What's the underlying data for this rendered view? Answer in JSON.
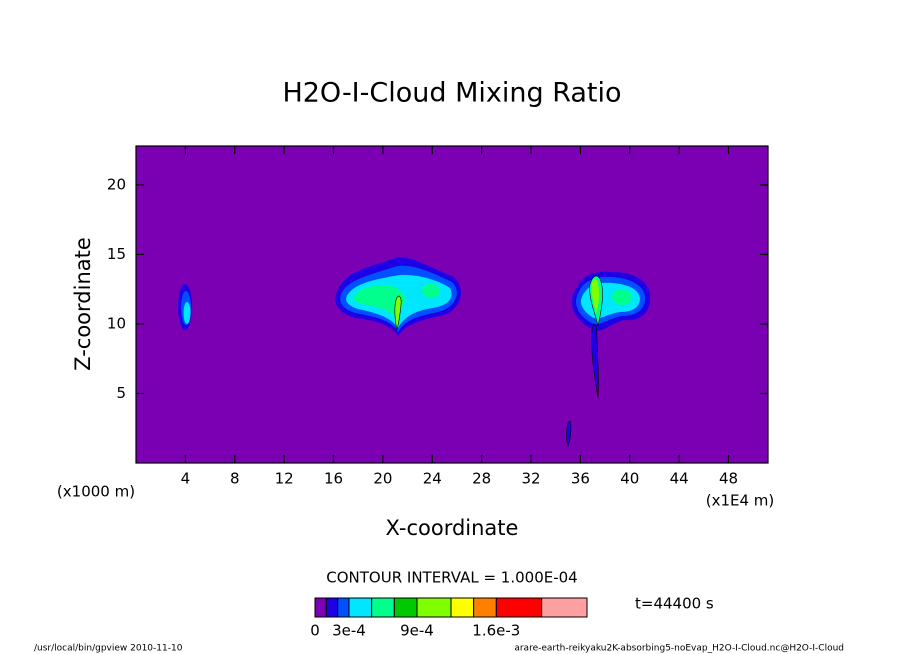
{
  "chart_data": {
    "type": "contour",
    "title": "H2O-I-Cloud Mixing Ratio",
    "x_label": "X-coordinate",
    "y_label": "Z-coordinate",
    "x_unit_label": "(x1E4 m)",
    "y_unit_label": "(x1000 m)",
    "xlim": [
      0,
      51.2
    ],
    "ylim": [
      0,
      22.8
    ],
    "xticks": [
      4,
      8,
      12,
      16,
      20,
      24,
      28,
      32,
      36,
      40,
      44,
      48
    ],
    "yticks": [
      5,
      10,
      15,
      20
    ],
    "background_color": "#7b00b4",
    "contour_interval_label": "CONTOUR INTERVAL = 1.000E-04",
    "time_label": "t=44400 s",
    "colorbar": {
      "levels": [
        0,
        0.0001,
        0.0002,
        0.0003,
        0.0005,
        0.0007,
        0.0009,
        0.0012,
        0.0014,
        0.0016,
        0.002,
        0.0024
      ],
      "colors": [
        "#7b00b4",
        "#1e00e6",
        "#0050ff",
        "#00e6ff",
        "#00ff8c",
        "#00c800",
        "#80ff00",
        "#ffff00",
        "#ff8000",
        "#ff0000",
        "#ffa0a0"
      ],
      "ticks": [
        0,
        {
          "value": 0.0003,
          "label": "3e-4"
        },
        {
          "value": 0.0009,
          "label": "9e-4"
        },
        {
          "value": 0.0016,
          "label": "1.6e-3"
        }
      ]
    },
    "footer_left": "/usr/local/bin/gpview  2010-11-10",
    "footer_right": "arare-earth-reikyaku2K-absorbing5-noEvap_H2O-I-Cloud.nc@H2O-I-Cloud"
  }
}
